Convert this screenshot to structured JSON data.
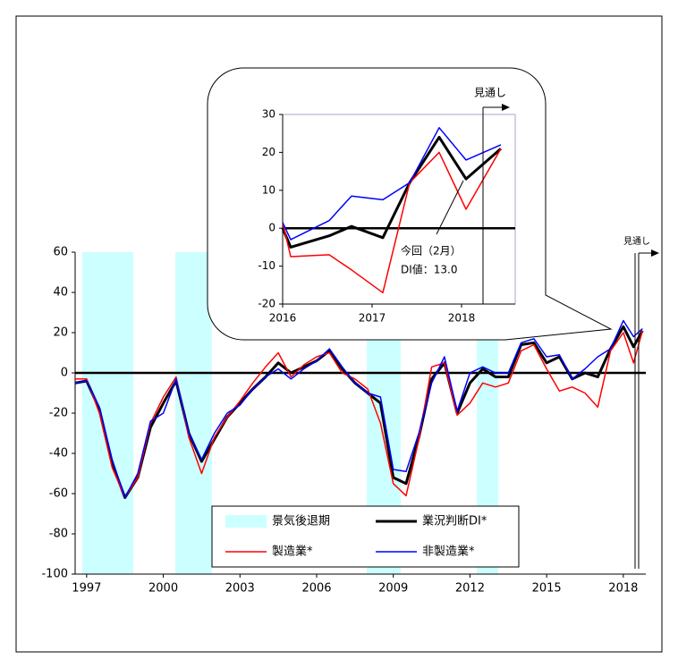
{
  "chart_data": [
    {
      "type": "line",
      "xlim": [
        1996.55,
        2018.88
      ],
      "ylim": [
        -100,
        60
      ],
      "xticks": [
        1997,
        2000,
        2003,
        2006,
        2009,
        2012,
        2015,
        2018
      ],
      "yticks": [
        -100,
        -80,
        -60,
        -40,
        -20,
        0,
        20,
        40,
        60
      ],
      "x": [
        1996.55,
        1997,
        1997.5,
        1998,
        1998.5,
        1999,
        1999.5,
        2000,
        2000.5,
        2001,
        2001.5,
        2002,
        2002.5,
        2003,
        2003.5,
        2004,
        2004.5,
        2005,
        2005.5,
        2006,
        2006.5,
        2007,
        2007.5,
        2008,
        2008.5,
        2009,
        2009.5,
        2010,
        2010.5,
        2011,
        2011.5,
        2012,
        2012.5,
        2013,
        2013.5,
        2014,
        2014.5,
        2015,
        2015.5,
        2016,
        2016.5,
        2017,
        2017.5,
        2018,
        2018.4,
        2018.75
      ],
      "series": [
        {
          "name": "業況判断DI*",
          "color": "#000000",
          "width": 3,
          "values": [
            -5,
            -4,
            -18,
            -45,
            -62,
            -52,
            -27,
            -15,
            -4,
            -30,
            -44,
            -33,
            -22,
            -15,
            -8,
            -2,
            5,
            0,
            3,
            6,
            11,
            2,
            -5,
            -10,
            -15,
            -52,
            -55,
            -32,
            -3,
            5,
            -20,
            -5,
            2,
            -2,
            -2,
            14,
            15,
            5,
            8,
            -3,
            0,
            -2,
            12,
            23,
            13,
            21
          ]
        },
        {
          "name": "製造業*",
          "color": "#ff0000",
          "width": 1.5,
          "values": [
            -3,
            -3,
            -20,
            -47,
            -62,
            -52,
            -25,
            -12,
            -2,
            -32,
            -50,
            -32,
            -22,
            -14,
            -5,
            3,
            10,
            -2,
            4,
            8,
            10,
            0,
            -3,
            -8,
            -25,
            -55,
            -61,
            -33,
            3,
            5,
            -21,
            -15,
            -5,
            -7,
            -5,
            11,
            14,
            2,
            -9,
            -7,
            -10,
            -17,
            11,
            20,
            5,
            21
          ]
        },
        {
          "name": "非製造業*",
          "color": "#0000ff",
          "width": 1.5,
          "values": [
            -5,
            -4,
            -17,
            -43,
            -62,
            -50,
            -24,
            -20,
            -3,
            -30,
            -43,
            -30,
            -20,
            -16,
            -8,
            -2,
            2,
            -3,
            2,
            6,
            12,
            3,
            -5,
            -10,
            -12,
            -48,
            -49,
            -30,
            -5,
            8,
            -19,
            0,
            3,
            0,
            0,
            15,
            17,
            8,
            9,
            -3,
            2,
            8,
            12,
            26,
            18,
            22
          ]
        }
      ],
      "shaded_periods": {
        "name": "景気後退期",
        "color": "#ccffff",
        "ranges": [
          [
            1996.83,
            1998.83
          ],
          [
            2000.47,
            2001.9
          ],
          [
            2007.96,
            2009.29
          ],
          [
            2012.27,
            2013.11
          ]
        ]
      },
      "forecast_label": "見通し"
    },
    {
      "type": "line",
      "xlim": [
        2016,
        2018.6
      ],
      "ylim": [
        -20,
        30
      ],
      "xticks": [
        2016,
        2017,
        2018
      ],
      "yticks": [
        -20,
        -10,
        0,
        10,
        20,
        30
      ],
      "x": [
        2016.0,
        2016.09,
        2016.52,
        2016.77,
        2017.12,
        2017.42,
        2017.75,
        2018.05,
        2018.44
      ],
      "series": [
        {
          "color": "#000000",
          "width": 3,
          "values": [
            0,
            -5,
            -2,
            0.5,
            -2.5,
            12,
            24,
            13,
            21
          ]
        },
        {
          "color": "#ff0000",
          "width": 1.5,
          "values": [
            1.5,
            -7.5,
            -7,
            -11,
            -17,
            12,
            20,
            5,
            21
          ]
        },
        {
          "color": "#0000ff",
          "width": 1.5,
          "values": [
            1.5,
            -3,
            2,
            8.5,
            7.5,
            12,
            26.5,
            18,
            22
          ]
        }
      ],
      "forecast_label": "見通し",
      "annotation": [
        "今回（2月）",
        "DI値：13.0"
      ]
    }
  ]
}
